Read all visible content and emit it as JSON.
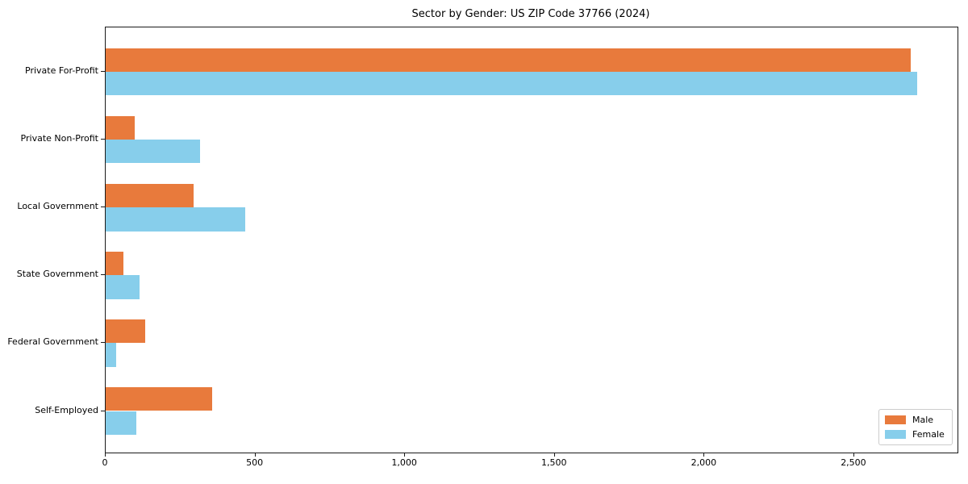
{
  "chart_data": {
    "type": "bar",
    "orientation": "horizontal",
    "title": "Sector by Gender: US ZIP Code 37766 (2024)",
    "categories": [
      "Private For-Profit",
      "Private Non-Profit",
      "Local Government",
      "State Government",
      "Federal Government",
      "Self-Employed"
    ],
    "series": [
      {
        "name": "Male",
        "color": "#e87a3c",
        "values": [
          2690,
          96,
          294,
          60,
          133,
          355
        ]
      },
      {
        "name": "Female",
        "color": "#87ceeb",
        "values": [
          2710,
          314,
          465,
          113,
          36,
          103
        ]
      }
    ],
    "xlabel": "",
    "ylabel": "",
    "xlim": [
      0,
      2845
    ],
    "x_ticks": [
      0,
      500,
      1000,
      1500,
      2000,
      2500
    ],
    "x_tick_labels": [
      "0",
      "500",
      "1,000",
      "1,500",
      "2,000",
      "2,500"
    ],
    "grid": false,
    "legend_position": "lower right",
    "axis_color": "#1a1a1a",
    "background_color": "#ffffff"
  }
}
